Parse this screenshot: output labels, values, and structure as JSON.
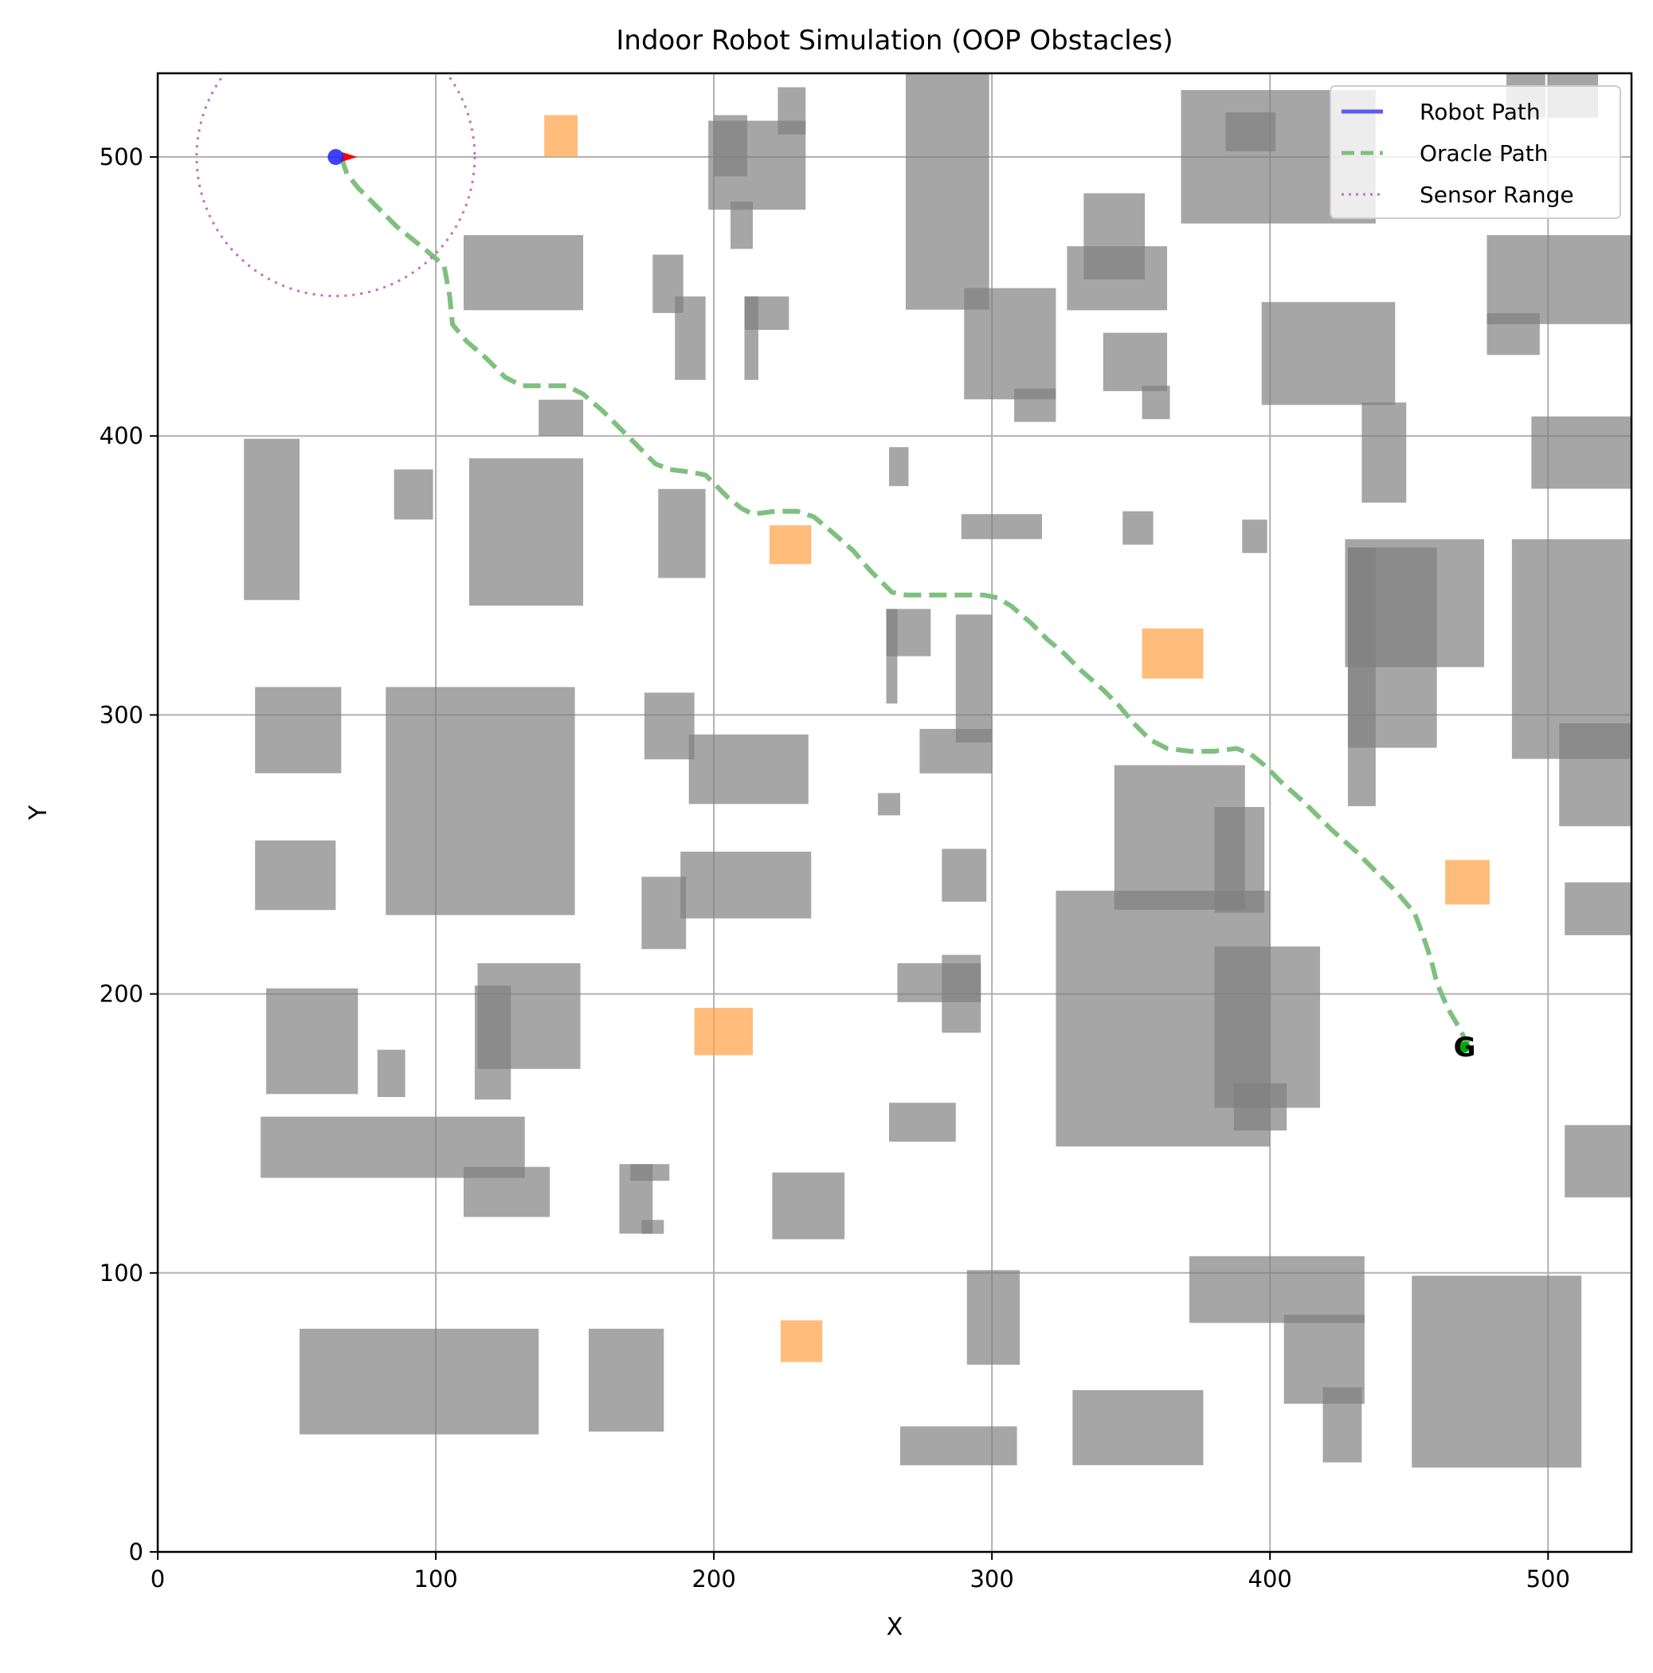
{
  "chart_data": {
    "type": "scatter",
    "title": "Indoor Robot Simulation (OOP Obstacles)",
    "xlabel": "X",
    "ylabel": "Y",
    "xlim": [
      0,
      530
    ],
    "ylim": [
      0,
      530
    ],
    "xticks": [
      0,
      100,
      200,
      300,
      400,
      500
    ],
    "yticks": [
      0,
      100,
      200,
      300,
      400,
      500
    ],
    "grid": true,
    "legend": {
      "location": "top-right",
      "entries": [
        {
          "label": "Robot Path",
          "color": "#5b5bf5",
          "style": "solid"
        },
        {
          "label": "Oracle Path",
          "color": "#7fbf7f",
          "style": "dashed"
        },
        {
          "label": "Sensor Range",
          "color": "#c070c0",
          "style": "dotted"
        }
      ]
    },
    "colors": {
      "obstacle": "#808080",
      "hazard": "#ffa64d",
      "robot": "#1f1fff",
      "heading": "#ff0000",
      "oracle_path": "#7fbf7f",
      "sensor_range": "#c070c0",
      "goal": "#00aa00"
    },
    "robot": {
      "x": 64,
      "y": 500,
      "heading_deg": 0
    },
    "sensor_range": {
      "cx": 64,
      "cy": 500,
      "r": 50
    },
    "goal": {
      "x": 470,
      "y": 181,
      "label": "G"
    },
    "oracle_path": [
      [
        66,
        500
      ],
      [
        68,
        494
      ],
      [
        72,
        489
      ],
      [
        78,
        483
      ],
      [
        86,
        475
      ],
      [
        96,
        467
      ],
      [
        103,
        461
      ],
      [
        105,
        450
      ],
      [
        106,
        440
      ],
      [
        111,
        434
      ],
      [
        118,
        428
      ],
      [
        125,
        421
      ],
      [
        131,
        418
      ],
      [
        139,
        418
      ],
      [
        147,
        418
      ],
      [
        153,
        415
      ],
      [
        160,
        409
      ],
      [
        168,
        401
      ],
      [
        174,
        395
      ],
      [
        179,
        390
      ],
      [
        184,
        388
      ],
      [
        192,
        387
      ],
      [
        197,
        386
      ],
      [
        200,
        383
      ],
      [
        205,
        378
      ],
      [
        210,
        374
      ],
      [
        214,
        372
      ],
      [
        222,
        373
      ],
      [
        230,
        373
      ],
      [
        236,
        371
      ],
      [
        242,
        366
      ],
      [
        250,
        359
      ],
      [
        256,
        352
      ],
      [
        260,
        348
      ],
      [
        264,
        344
      ],
      [
        269,
        343
      ],
      [
        277,
        343
      ],
      [
        287,
        343
      ],
      [
        297,
        343
      ],
      [
        302,
        342
      ],
      [
        307,
        339
      ],
      [
        314,
        333
      ],
      [
        320,
        327
      ],
      [
        326,
        322
      ],
      [
        332,
        316
      ],
      [
        340,
        309
      ],
      [
        346,
        303
      ],
      [
        351,
        297
      ],
      [
        357,
        291
      ],
      [
        363,
        288
      ],
      [
        371,
        287
      ],
      [
        380,
        287
      ],
      [
        388,
        288
      ],
      [
        393,
        286
      ],
      [
        398,
        282
      ],
      [
        404,
        276
      ],
      [
        413,
        268
      ],
      [
        422,
        259
      ],
      [
        431,
        251
      ],
      [
        440,
        242
      ],
      [
        446,
        236
      ],
      [
        452,
        229
      ],
      [
        455,
        221
      ],
      [
        458,
        212
      ],
      [
        460,
        204
      ],
      [
        463,
        197
      ],
      [
        465,
        193
      ],
      [
        468,
        188
      ],
      [
        470,
        184
      ],
      [
        472,
        183
      ]
    ],
    "obstacles": [
      [
        269,
        445,
        30,
        85
      ],
      [
        290,
        413,
        33,
        40
      ],
      [
        308,
        405,
        15,
        12
      ],
      [
        198,
        481,
        35,
        32
      ],
      [
        223,
        508,
        10,
        17
      ],
      [
        200,
        493,
        12,
        22
      ],
      [
        206,
        467,
        8,
        17
      ],
      [
        110,
        445,
        43,
        27
      ],
      [
        178,
        444,
        11,
        21
      ],
      [
        186,
        420,
        11,
        30
      ],
      [
        211,
        438,
        16,
        12
      ],
      [
        211,
        420,
        5,
        30
      ],
      [
        137,
        400,
        16,
        13
      ],
      [
        31,
        341,
        20,
        58
      ],
      [
        85,
        370,
        14,
        18
      ],
      [
        112,
        339,
        41,
        53
      ],
      [
        180,
        349,
        17,
        32
      ],
      [
        368,
        476,
        70,
        48
      ],
      [
        384,
        502,
        18,
        14
      ],
      [
        333,
        456,
        22,
        31
      ],
      [
        327,
        445,
        36,
        23
      ],
      [
        340,
        416,
        23,
        21
      ],
      [
        354,
        406,
        10,
        12
      ],
      [
        397,
        411,
        48,
        37
      ],
      [
        485,
        514,
        14,
        16
      ],
      [
        500,
        514,
        18,
        16
      ],
      [
        478,
        440,
        53,
        32
      ],
      [
        478,
        429,
        19,
        15
      ],
      [
        433,
        376,
        16,
        36
      ],
      [
        494,
        381,
        36,
        26
      ],
      [
        263,
        382,
        7,
        14
      ],
      [
        289,
        363,
        29,
        9
      ],
      [
        347,
        361,
        11,
        12
      ],
      [
        390,
        358,
        9,
        12
      ],
      [
        427,
        317,
        50,
        46
      ],
      [
        428,
        288,
        32,
        72
      ],
      [
        428,
        267,
        10,
        93
      ],
      [
        487,
        284,
        45,
        79
      ],
      [
        504,
        260,
        28,
        37
      ],
      [
        35,
        279,
        31,
        31
      ],
      [
        82,
        228,
        68,
        82
      ],
      [
        175,
        284,
        18,
        24
      ],
      [
        191,
        268,
        43,
        25
      ],
      [
        262,
        321,
        16,
        17
      ],
      [
        262,
        304,
        4,
        34
      ],
      [
        259,
        264,
        8,
        8
      ],
      [
        274,
        279,
        26,
        16
      ],
      [
        287,
        290,
        13,
        46
      ],
      [
        344,
        230,
        47,
        52
      ],
      [
        380,
        229,
        18,
        38
      ],
      [
        35,
        230,
        29,
        25
      ],
      [
        188,
        227,
        47,
        24
      ],
      [
        174,
        216,
        16,
        26
      ],
      [
        282,
        233,
        16,
        19
      ],
      [
        323,
        145,
        77,
        92
      ],
      [
        380,
        159,
        38,
        58
      ],
      [
        387,
        151,
        19,
        17
      ],
      [
        506,
        221,
        26,
        19
      ],
      [
        39,
        164,
        33,
        38
      ],
      [
        79,
        163,
        10,
        17
      ],
      [
        115,
        173,
        37,
        38
      ],
      [
        114,
        162,
        13,
        41
      ],
      [
        266,
        197,
        30,
        14
      ],
      [
        282,
        186,
        14,
        28
      ],
      [
        263,
        147,
        24,
        14
      ],
      [
        37,
        134,
        95,
        22
      ],
      [
        110,
        120,
        31,
        18
      ],
      [
        166,
        114,
        12,
        25
      ],
      [
        170,
        133,
        14,
        6
      ],
      [
        174,
        114,
        8,
        5
      ],
      [
        221,
        112,
        26,
        24
      ],
      [
        506,
        127,
        26,
        26
      ],
      [
        371,
        82,
        63,
        24
      ],
      [
        291,
        67,
        19,
        34
      ],
      [
        405,
        53,
        29,
        32
      ],
      [
        419,
        32,
        14,
        27
      ],
      [
        451,
        30,
        61,
        69
      ],
      [
        51,
        42,
        86,
        38
      ],
      [
        155,
        43,
        27,
        37
      ],
      [
        267,
        31,
        42,
        14
      ],
      [
        329,
        31,
        47,
        27
      ]
    ],
    "hazards": [
      [
        139,
        500,
        12,
        15
      ],
      [
        220,
        354,
        15,
        14
      ],
      [
        354,
        313,
        22,
        18
      ],
      [
        463,
        232,
        16,
        16
      ],
      [
        193,
        178,
        21,
        17
      ],
      [
        224,
        68,
        15,
        15
      ]
    ]
  }
}
